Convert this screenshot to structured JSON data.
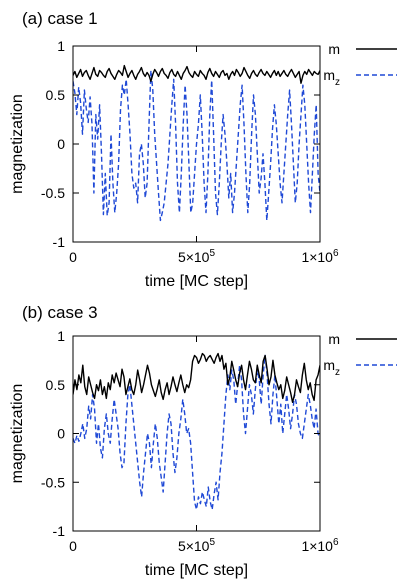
{
  "chart_data": [
    {
      "panel_label": "(a) case 1",
      "type": "line",
      "xlabel": "time [MC step]",
      "ylabel": "magnetization",
      "xlim": [
        0,
        1000000
      ],
      "ylim": [
        -1,
        1
      ],
      "x_ticks": [
        {
          "value": 0,
          "base": "0",
          "exp": ""
        },
        {
          "value": 500000,
          "base": "5×10",
          "exp": "5"
        },
        {
          "value": 1000000,
          "base": "1×10",
          "exp": "6"
        }
      ],
      "y_ticks": [
        {
          "value": 1,
          "label": "1"
        },
        {
          "value": 0.5,
          "label": "0.5"
        },
        {
          "value": 0,
          "label": "0"
        },
        {
          "value": -0.5,
          "label": "-0.5"
        },
        {
          "value": -1,
          "label": "-1"
        }
      ],
      "legend_position": "outside-right",
      "series": [
        {
          "name": "m",
          "name_sub": "",
          "color": "#000000",
          "dash": "solid",
          "values": [
            0.7,
            0.74,
            0.68,
            0.72,
            0.76,
            0.69,
            0.73,
            0.75,
            0.7,
            0.66,
            0.72,
            0.78,
            0.71,
            0.69,
            0.75,
            0.73,
            0.7,
            0.68,
            0.74,
            0.77,
            0.72,
            0.69,
            0.66,
            0.71,
            0.75,
            0.73,
            0.7,
            0.8,
            0.74,
            0.68,
            0.72,
            0.75,
            0.7,
            0.66,
            0.71,
            0.74,
            0.78,
            0.72,
            0.69,
            0.73,
            0.7,
            0.64,
            0.71,
            0.76,
            0.73,
            0.69,
            0.74,
            0.77,
            0.72,
            0.7,
            0.67,
            0.73,
            0.76,
            0.71,
            0.69,
            0.74,
            0.7,
            0.66,
            0.72,
            0.75,
            0.79,
            0.73,
            0.7,
            0.68,
            0.74,
            0.71,
            0.69,
            0.75,
            0.72,
            0.7,
            0.66,
            0.73,
            0.77,
            0.72,
            0.69,
            0.74,
            0.71,
            0.68,
            0.73,
            0.75,
            0.7,
            0.72,
            0.66,
            0.71,
            0.74,
            0.7,
            0.76,
            0.73,
            0.69,
            0.72,
            0.78,
            0.74,
            0.7,
            0.67,
            0.72,
            0.75,
            0.71,
            0.69,
            0.73,
            0.76,
            0.72,
            0.7,
            0.74,
            0.71,
            0.68,
            0.72,
            0.75,
            0.7,
            0.74,
            0.69,
            0.72,
            0.75,
            0.71,
            0.69,
            0.73,
            0.76,
            0.72,
            0.68,
            0.71,
            0.74,
            0.62,
            0.7,
            0.74,
            0.71,
            0.76,
            0.73,
            0.7,
            0.74,
            0.72,
            0.71,
            0.75
          ]
        },
        {
          "name": "m",
          "name_sub": "z",
          "color": "#1f49d6",
          "dash": "5,3",
          "values": [
            0.64,
            0.52,
            0.3,
            0.58,
            0.42,
            0.1,
            0.55,
            0.36,
            0.22,
            0.48,
            0.2,
            -0.5,
            0.3,
            0.05,
            0.4,
            -0.1,
            -0.72,
            -0.3,
            -0.73,
            -0.6,
            0.1,
            -0.4,
            -0.7,
            -0.5,
            -0.2,
            0.35,
            0.6,
            0.5,
            0.66,
            0.4,
            0.1,
            -0.3,
            -0.45,
            -0.4,
            -0.6,
            -0.1,
            0.0,
            -0.2,
            -0.55,
            -0.4,
            0.2,
            0.75,
            0.55,
            0.1,
            -0.2,
            -0.5,
            -0.78,
            -0.7,
            -0.6,
            -0.4,
            -0.2,
            0.1,
            0.4,
            0.66,
            0.2,
            -0.4,
            -0.7,
            -0.3,
            0.2,
            0.6,
            0.3,
            -0.2,
            -0.7,
            -0.6,
            -0.3,
            0.0,
            0.2,
            0.5,
            0.1,
            -0.4,
            -0.7,
            -0.3,
            0.3,
            0.65,
            0.1,
            -0.5,
            -0.72,
            -0.4,
            0.0,
            0.3,
            0.1,
            -0.2,
            -0.55,
            -0.3,
            -0.7,
            -0.5,
            -0.2,
            0.1,
            0.4,
            0.6,
            0.2,
            -0.3,
            -0.7,
            -0.4,
            0.1,
            0.5,
            0.3,
            -0.1,
            -0.5,
            -0.35,
            -0.1,
            -0.4,
            -0.78,
            -0.5,
            -0.2,
            0.15,
            0.4,
            0.2,
            -0.1,
            -0.4,
            -0.6,
            -0.3,
            0.0,
            0.3,
            0.55,
            0.2,
            -0.2,
            -0.6,
            -0.4,
            0.0,
            0.3,
            0.6,
            0.4,
            0.0,
            -0.4,
            -0.7,
            -0.3,
            0.1,
            0.4,
            -0.3,
            -0.5
          ]
        }
      ]
    },
    {
      "panel_label": "(b) case 3",
      "type": "line",
      "xlabel": "time [MC step]",
      "ylabel": "magnetization",
      "xlim": [
        0,
        1000000
      ],
      "ylim": [
        -1,
        1
      ],
      "x_ticks": [
        {
          "value": 0,
          "base": "0",
          "exp": ""
        },
        {
          "value": 500000,
          "base": "5×10",
          "exp": "5"
        },
        {
          "value": 1000000,
          "base": "1×10",
          "exp": "6"
        }
      ],
      "y_ticks": [
        {
          "value": 1,
          "label": "1"
        },
        {
          "value": 0.5,
          "label": "0.5"
        },
        {
          "value": 0,
          "label": "0"
        },
        {
          "value": -0.5,
          "label": "-0.5"
        },
        {
          "value": -1,
          "label": "-1"
        }
      ],
      "legend_position": "outside-right",
      "series": [
        {
          "name": "m",
          "name_sub": "",
          "color": "#000000",
          "dash": "solid",
          "values": [
            0.4,
            0.55,
            0.45,
            0.6,
            0.52,
            0.7,
            0.48,
            0.4,
            0.58,
            0.5,
            0.42,
            0.36,
            0.5,
            0.44,
            0.55,
            0.4,
            0.48,
            0.36,
            0.52,
            0.45,
            0.6,
            0.52,
            0.62,
            0.55,
            0.48,
            0.66,
            0.58,
            0.4,
            0.48,
            0.56,
            0.45,
            0.4,
            0.5,
            0.65,
            0.55,
            0.42,
            0.5,
            0.6,
            0.7,
            0.62,
            0.5,
            0.44,
            0.38,
            0.46,
            0.55,
            0.42,
            0.35,
            0.45,
            0.52,
            0.4,
            0.48,
            0.58,
            0.5,
            0.43,
            0.52,
            0.6,
            0.5,
            0.42,
            0.5,
            0.47,
            0.55,
            0.74,
            0.8,
            0.78,
            0.72,
            0.76,
            0.82,
            0.8,
            0.74,
            0.78,
            0.8,
            0.76,
            0.72,
            0.78,
            0.82,
            0.74,
            0.8,
            0.66,
            0.72,
            0.5,
            0.58,
            0.74,
            0.65,
            0.55,
            0.48,
            0.62,
            0.7,
            0.55,
            0.45,
            0.6,
            0.74,
            0.66,
            0.55,
            0.52,
            0.7,
            0.6,
            0.52,
            0.74,
            0.8,
            0.66,
            0.5,
            0.58,
            0.75,
            0.6,
            0.52,
            0.45,
            0.5,
            0.36,
            0.44,
            0.58,
            0.5,
            0.42,
            0.32,
            0.4,
            0.55,
            0.48,
            0.42,
            0.6,
            0.72,
            0.55,
            0.45,
            0.52,
            0.4,
            0.34,
            0.55,
            0.6,
            0.7
          ]
        },
        {
          "name": "m",
          "name_sub": "z",
          "color": "#1f49d6",
          "dash": "5,3",
          "values": [
            -0.05,
            -0.1,
            -0.02,
            -0.08,
            0.0,
            0.1,
            -0.05,
            0.05,
            0.28,
            0.15,
            0.4,
            0.25,
            -0.1,
            0.1,
            -0.15,
            -0.25,
            0.05,
            0.2,
            0.0,
            -0.1,
            0.15,
            0.35,
            0.2,
            0.05,
            -0.2,
            -0.35,
            -0.3,
            0.1,
            0.4,
            0.5,
            0.3,
            0.1,
            -0.1,
            -0.3,
            -0.5,
            -0.65,
            -0.4,
            -0.2,
            0.0,
            -0.1,
            -0.35,
            -0.1,
            0.1,
            -0.05,
            -0.3,
            -0.45,
            -0.6,
            -0.3,
            0.0,
            0.2,
            0.1,
            -0.2,
            -0.4,
            -0.25,
            0.0,
            0.15,
            0.35,
            0.2,
            0.0,
            0.05,
            -0.1,
            -0.4,
            -0.7,
            -0.78,
            -0.65,
            -0.72,
            -0.6,
            -0.68,
            -0.75,
            -0.55,
            -0.7,
            -0.78,
            -0.62,
            -0.5,
            -0.68,
            -0.4,
            -0.2,
            0.1,
            0.4,
            0.6,
            0.45,
            0.65,
            0.55,
            0.3,
            0.5,
            0.7,
            0.55,
            0.2,
            0.0,
            0.25,
            0.5,
            0.4,
            0.2,
            0.45,
            0.65,
            0.55,
            0.3,
            0.6,
            0.8,
            0.6,
            0.3,
            0.1,
            0.4,
            0.6,
            0.35,
            0.1,
            0.3,
            0.0,
            0.2,
            0.4,
            0.25,
            0.05,
            0.2,
            0.4,
            0.3,
            0.1,
            0.0,
            -0.05,
            0.1,
            0.25,
            0.4,
            0.3,
            0.15,
            0.05,
            0.25,
            0.0,
            -0.05
          ]
        }
      ]
    }
  ]
}
